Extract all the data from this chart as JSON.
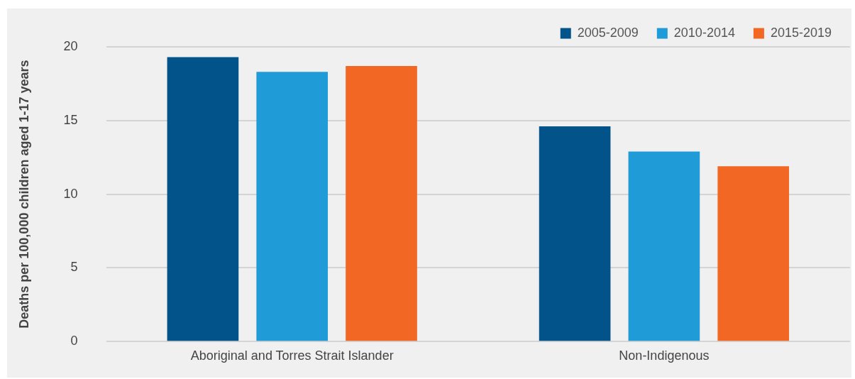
{
  "chart_data": {
    "type": "bar",
    "ylabel": "Deaths per 100,000 children aged 1-17 years",
    "categories": [
      "Aboriginal and Torres Strait Islander",
      "Non-Indigenous"
    ],
    "series": [
      {
        "name": "2005-2009",
        "color": "#02538a",
        "values": [
          19.3,
          14.6
        ]
      },
      {
        "name": "2010-2014",
        "color": "#1f9bd7",
        "values": [
          18.3,
          12.9
        ]
      },
      {
        "name": "2015-2019",
        "color": "#f26724",
        "values": [
          18.7,
          11.9
        ]
      }
    ],
    "ylim": [
      0,
      20
    ],
    "yticks": [
      0,
      5,
      10,
      15,
      20
    ],
    "grid": "y",
    "legend": "top right"
  }
}
